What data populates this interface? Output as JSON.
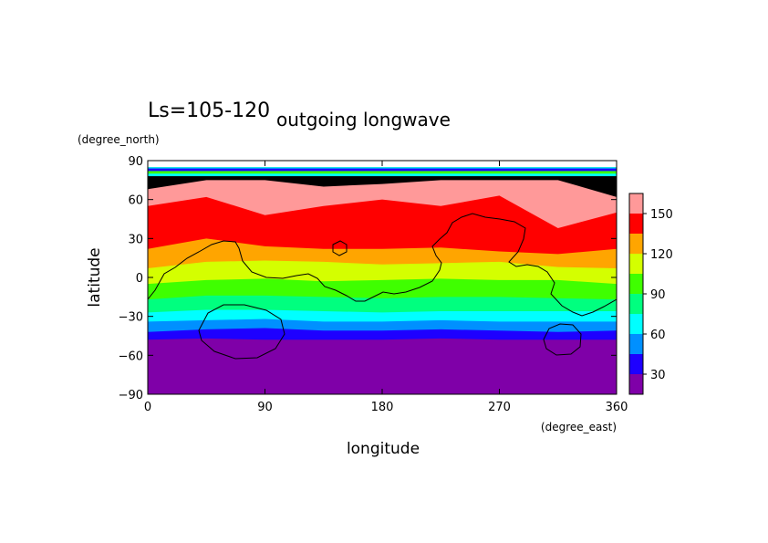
{
  "header": {
    "period": "Ls=105-120",
    "title": "outgoing longwave"
  },
  "axes": {
    "x_label": "longitude",
    "y_label": "latitude",
    "x_unit": "(degree_east)",
    "y_unit": "(degree_north)"
  },
  "chart_data": {
    "type": "heatmap",
    "title": "outgoing longwave",
    "subtitle": "Ls=105-120",
    "xlabel": "longitude",
    "ylabel": "latitude",
    "xunit": "(degree_east)",
    "yunit": "(degree_north)",
    "xlim": [
      0,
      360
    ],
    "ylim": [
      -90,
      90
    ],
    "xticks": [
      0,
      90,
      180,
      270,
      360
    ],
    "yticks": [
      -90,
      -60,
      -30,
      0,
      30,
      60,
      90
    ],
    "colorbar": {
      "levels": [
        15,
        30,
        45,
        60,
        75,
        90,
        105,
        120,
        135,
        150,
        165
      ],
      "tick_labels": [
        30,
        60,
        90,
        120,
        150
      ],
      "colors": [
        "#7f00a8",
        "#1e00ff",
        "#0090ff",
        "#00ffff",
        "#00ff7f",
        "#3fff00",
        "#d4ff00",
        "#ffa500",
        "#ff0000",
        "#ff9999"
      ]
    },
    "band_boundaries": [
      {
        "level": 30,
        "lat": [
          -48,
          -47,
          -48,
          -48,
          -48,
          -47,
          -48,
          -48,
          -48
        ]
      },
      {
        "level": 45,
        "lat": [
          -42,
          -40,
          -39,
          -41,
          -41,
          -40,
          -41,
          -42,
          -41
        ]
      },
      {
        "level": 60,
        "lat": [
          -34,
          -33,
          -32,
          -34,
          -34,
          -33,
          -34,
          -34,
          -34
        ]
      },
      {
        "level": 75,
        "lat": [
          -27,
          -25,
          -25,
          -26,
          -27,
          -26,
          -26,
          -26,
          -26
        ]
      },
      {
        "level": 90,
        "lat": [
          -17,
          -14,
          -14,
          -15,
          -16,
          -15,
          -15,
          -16,
          -17
        ]
      },
      {
        "level": 105,
        "lat": [
          -5,
          -2,
          -1,
          -3,
          -2,
          -1,
          -2,
          -2,
          -5
        ]
      },
      {
        "level": 120,
        "lat": [
          7,
          12,
          13,
          12,
          10,
          11,
          12,
          8,
          7
        ]
      },
      {
        "level": 135,
        "lat": [
          22,
          30,
          24,
          22,
          22,
          23,
          20,
          18,
          22
        ]
      },
      {
        "level": 150,
        "lat": [
          55,
          62,
          48,
          55,
          60,
          55,
          63,
          38,
          50
        ]
      },
      {
        "level": 165,
        "lat": [
          68,
          75,
          75,
          70,
          72,
          75,
          75,
          75,
          62
        ]
      }
    ],
    "band_x": [
      0,
      45,
      90,
      135,
      180,
      225,
      270,
      315,
      360
    ],
    "polar_rows": [
      {
        "lat": [
          78,
          85
        ],
        "value": 60
      },
      {
        "lat": [
          80,
          82
        ],
        "value": 90
      },
      {
        "lat": [
          82,
          84
        ],
        "value": 30
      }
    ],
    "topography_contour": "0 km elevation (black line)"
  }
}
